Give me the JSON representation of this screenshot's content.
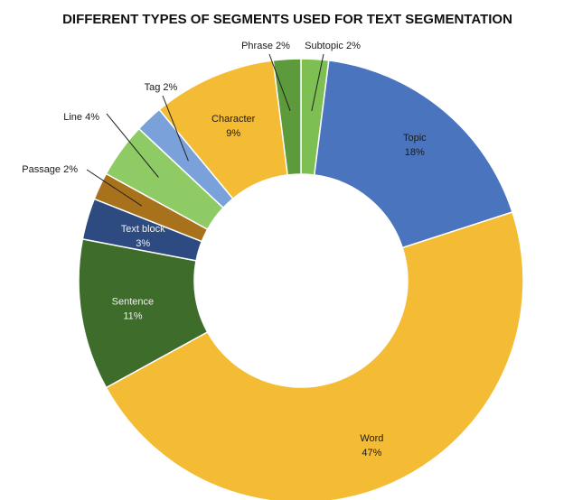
{
  "chart_data": {
    "type": "pie",
    "title": "DIFFERENT TYPES OF SEGMENTS USED FOR TEXT SEGMENTATION",
    "slices": [
      {
        "label": "Subtopic",
        "value": 2,
        "display": "2%",
        "color": "#7dbf52",
        "text_color": "#1a1a1a"
      },
      {
        "label": "Topic",
        "value": 18,
        "display": "18%",
        "color": "#4a74be",
        "text_color": "#1a1a1a"
      },
      {
        "label": "Word",
        "value": 47,
        "display": "47%",
        "color": "#f4bb34",
        "text_color": "#1a1a1a"
      },
      {
        "label": "Sentence",
        "value": 11,
        "display": "11%",
        "color": "#3e6d2b",
        "text_color": "#f0f0f0"
      },
      {
        "label": "Text block",
        "value": 3,
        "display": "3%",
        "color": "#2d4b80",
        "text_color": "#f0f0f0"
      },
      {
        "label": "Passage",
        "value": 2,
        "display": "2%",
        "color": "#a8711c",
        "text_color": "#1a1a1a"
      },
      {
        "label": "Line",
        "value": 4,
        "display": "4%",
        "color": "#8ecb64",
        "text_color": "#1a1a1a"
      },
      {
        "label": "Tag",
        "value": 2,
        "display": "2%",
        "color": "#7ba1da",
        "text_color": "#1a1a1a"
      },
      {
        "label": "Character",
        "value": 9,
        "display": "9%",
        "color": "#f4bb34",
        "text_color": "#1a1a1a"
      },
      {
        "label": "Phrase",
        "value": 2,
        "display": "2%",
        "color": "#5d9a3c",
        "text_color": "#1a1a1a"
      }
    ],
    "legend": "none"
  }
}
